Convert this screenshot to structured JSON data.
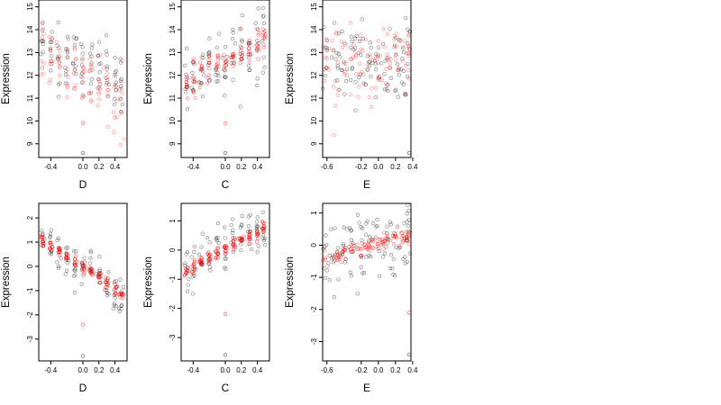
{
  "figure": {
    "background": "#ffffff",
    "black_color": "#000000",
    "red_color": "#ff0000"
  },
  "chart_data": [
    {
      "type": "scatter",
      "row": 1,
      "col": 1,
      "xlabel": "D",
      "ylabel": "Expression",
      "xlim": [
        -0.55,
        0.55
      ],
      "ylim": [
        8.4,
        15.3
      ],
      "xticks": [
        -0.4,
        0.0,
        0.2,
        0.4
      ],
      "xtick_labels": [
        "-0.4",
        "0.0",
        "0.2",
        "0.4"
      ],
      "yticks": [
        9,
        10,
        11,
        12,
        13,
        14,
        15
      ],
      "ytick_labels": [
        "9",
        "10",
        "11",
        "12",
        "13",
        "14",
        "15"
      ],
      "marker": "open circle",
      "series": [
        {
          "color": "#000000",
          "opacity": 0.45,
          "count": 90,
          "groups": [
            [
              -0.5,
              13.3
            ],
            [
              -0.4,
              13.0
            ],
            [
              -0.3,
              12.9
            ],
            [
              -0.2,
              12.6
            ],
            [
              -0.1,
              12.6
            ],
            [
              0.0,
              12.5
            ],
            [
              0.1,
              12.3
            ],
            [
              0.2,
              12.3
            ],
            [
              0.3,
              12.0
            ],
            [
              0.4,
              11.6
            ],
            [
              0.48,
              11.2
            ]
          ],
          "spread_x": 0.012,
          "spread_y": 0.7
        },
        {
          "color": "#ff0000",
          "opacity": 0.4,
          "count": 90,
          "groups": [
            [
              -0.5,
              13.2
            ],
            [
              -0.4,
              12.8
            ],
            [
              -0.3,
              12.6
            ],
            [
              -0.2,
              12.4
            ],
            [
              -0.1,
              12.3
            ],
            [
              0.0,
              12.0
            ],
            [
              0.1,
              11.9
            ],
            [
              0.2,
              11.7
            ],
            [
              0.3,
              11.4
            ],
            [
              0.4,
              11.2
            ],
            [
              0.48,
              10.8
            ]
          ],
          "spread_x": 0.012,
          "spread_y": 0.8
        }
      ],
      "outliers": [
        {
          "x": 0.0,
          "y": 8.6,
          "color": "#000000"
        },
        {
          "x": 0.0,
          "y": 9.9,
          "color": "#ff0000"
        }
      ]
    },
    {
      "type": "scatter",
      "row": 1,
      "col": 2,
      "xlabel": "C",
      "ylabel": "Expression",
      "xlim": [
        -0.55,
        0.55
      ],
      "ylim": [
        8.4,
        15.3
      ],
      "xticks": [
        -0.4,
        0.0,
        0.2,
        0.4
      ],
      "xtick_labels": [
        "-0.4",
        "0.0",
        "0.2",
        "0.4"
      ],
      "yticks": [
        9,
        10,
        11,
        12,
        13,
        14,
        15
      ],
      "ytick_labels": [
        "9",
        "10",
        "11",
        "12",
        "13",
        "14",
        "15"
      ],
      "marker": "open circle",
      "series": [
        {
          "color": "#000000",
          "opacity": 0.45,
          "count": 90,
          "groups": [
            [
              -0.48,
              11.6
            ],
            [
              -0.4,
              12.0
            ],
            [
              -0.3,
              12.2
            ],
            [
              -0.2,
              12.4
            ],
            [
              -0.1,
              12.6
            ],
            [
              0.0,
              12.6
            ],
            [
              0.1,
              12.8
            ],
            [
              0.2,
              13.0
            ],
            [
              0.3,
              13.1
            ],
            [
              0.4,
              13.4
            ],
            [
              0.48,
              13.6
            ]
          ],
          "spread_x": 0.012,
          "spread_y": 0.7
        },
        {
          "color": "#ff0000",
          "opacity": 0.5,
          "count": 90,
          "groups": [
            [
              -0.48,
              11.5
            ],
            [
              -0.4,
              11.9
            ],
            [
              -0.3,
              12.1
            ],
            [
              -0.2,
              12.3
            ],
            [
              -0.1,
              12.5
            ],
            [
              0.0,
              12.6
            ],
            [
              0.1,
              12.8
            ],
            [
              0.2,
              12.9
            ],
            [
              0.3,
              13.1
            ],
            [
              0.4,
              13.3
            ],
            [
              0.48,
              13.5
            ]
          ],
          "spread_x": 0.012,
          "spread_y": 0.35
        }
      ],
      "outliers": [
        {
          "x": 0.0,
          "y": 8.6,
          "color": "#000000"
        },
        {
          "x": 0.0,
          "y": 9.9,
          "color": "#ff0000"
        }
      ]
    },
    {
      "type": "scatter",
      "row": 1,
      "col": 3,
      "xlabel": "E",
      "ylabel": "Expression",
      "xlim": [
        -0.65,
        0.38
      ],
      "ylim": [
        8.4,
        15.3
      ],
      "xticks": [
        -0.6,
        -0.2,
        0.0,
        0.2,
        0.4
      ],
      "xtick_labels": [
        "-0.6",
        "-0.2",
        "0.0",
        "0.2",
        "0.4"
      ],
      "yticks": [
        9,
        10,
        11,
        12,
        13,
        14,
        15
      ],
      "ytick_labels": [
        "9",
        "10",
        "11",
        "12",
        "13",
        "14",
        "15"
      ],
      "marker": "open circle",
      "series": [
        {
          "color": "#000000",
          "opacity": 0.45,
          "count": 100,
          "groups": [
            [
              -0.62,
              12.6
            ],
            [
              -0.5,
              12.6
            ],
            [
              -0.4,
              12.5
            ],
            [
              -0.3,
              12.6
            ],
            [
              -0.2,
              12.5
            ],
            [
              -0.1,
              12.4
            ],
            [
              0.0,
              12.4
            ],
            [
              0.1,
              12.5
            ],
            [
              0.2,
              12.5
            ],
            [
              0.3,
              12.6
            ],
            [
              0.36,
              12.8
            ]
          ],
          "spread_x": 0.03,
          "spread_y": 0.8
        },
        {
          "color": "#ff0000",
          "opacity": 0.4,
          "count": 100,
          "groups": [
            [
              -0.62,
              12.7
            ],
            [
              -0.5,
              12.6
            ],
            [
              -0.4,
              12.5
            ],
            [
              -0.3,
              12.5
            ],
            [
              -0.2,
              12.4
            ],
            [
              -0.1,
              12.4
            ],
            [
              0.0,
              12.4
            ],
            [
              0.1,
              12.5
            ],
            [
              0.2,
              12.5
            ],
            [
              0.3,
              12.6
            ],
            [
              0.36,
              13.0
            ]
          ],
          "spread_x": 0.03,
          "spread_y": 0.8
        }
      ],
      "outliers": [
        {
          "x": 0.36,
          "y": 8.6,
          "color": "#000000"
        }
      ]
    },
    {
      "type": "scatter",
      "row": 2,
      "col": 1,
      "xlabel": "D",
      "ylabel": "Expression",
      "xlim": [
        -0.55,
        0.55
      ],
      "ylim": [
        -3.9,
        2.6
      ],
      "xticks": [
        -0.4,
        0.0,
        0.2,
        0.4
      ],
      "xtick_labels": [
        "-0.4",
        "0.0",
        "0.2",
        "0.4"
      ],
      "yticks": [
        -3,
        -2,
        -1,
        0,
        1,
        2
      ],
      "ytick_labels": [
        "-3",
        "-2",
        "-1",
        "0",
        "1",
        "2"
      ],
      "marker": "open circle",
      "series": [
        {
          "color": "#000000",
          "opacity": 0.45,
          "count": 90,
          "groups": [
            [
              -0.5,
              1.1
            ],
            [
              -0.4,
              0.9
            ],
            [
              -0.3,
              0.6
            ],
            [
              -0.2,
              0.4
            ],
            [
              -0.1,
              0.2
            ],
            [
              0.0,
              0.0
            ],
            [
              0.1,
              -0.2
            ],
            [
              0.2,
              -0.4
            ],
            [
              0.3,
              -0.7
            ],
            [
              0.4,
              -1.0
            ],
            [
              0.48,
              -1.2
            ]
          ],
          "spread_x": 0.012,
          "spread_y": 0.45
        },
        {
          "color": "#ff0000",
          "opacity": 0.6,
          "count": 90,
          "groups": [
            [
              -0.5,
              1.1
            ],
            [
              -0.4,
              0.85
            ],
            [
              -0.3,
              0.6
            ],
            [
              -0.2,
              0.4
            ],
            [
              -0.1,
              0.15
            ],
            [
              0.0,
              -0.05
            ],
            [
              0.1,
              -0.25
            ],
            [
              0.2,
              -0.45
            ],
            [
              0.3,
              -0.7
            ],
            [
              0.4,
              -0.95
            ],
            [
              0.48,
              -1.15
            ]
          ],
          "spread_x": 0.012,
          "spread_y": 0.12
        }
      ],
      "outliers": [
        {
          "x": 0.0,
          "y": -3.7,
          "color": "#000000"
        },
        {
          "x": 0.0,
          "y": -2.4,
          "color": "#ff0000"
        }
      ]
    },
    {
      "type": "scatter",
      "row": 2,
      "col": 2,
      "xlabel": "C",
      "ylabel": "Expression",
      "xlim": [
        -0.55,
        0.55
      ],
      "ylim": [
        -3.8,
        1.6
      ],
      "xticks": [
        -0.4,
        0.0,
        0.2,
        0.4
      ],
      "xtick_labels": [
        "-0.4",
        "0.0",
        "0.2",
        "0.4"
      ],
      "yticks": [
        -3,
        -2,
        -1,
        0,
        1
      ],
      "ytick_labels": [
        "-3",
        "-2",
        "-1",
        "0",
        "1"
      ],
      "marker": "open circle",
      "series": [
        {
          "color": "#000000",
          "opacity": 0.45,
          "count": 90,
          "groups": [
            [
              -0.48,
              -0.7
            ],
            [
              -0.4,
              -0.5
            ],
            [
              -0.3,
              -0.35
            ],
            [
              -0.2,
              -0.2
            ],
            [
              -0.1,
              -0.05
            ],
            [
              0.0,
              0.05
            ],
            [
              0.1,
              0.2
            ],
            [
              0.2,
              0.35
            ],
            [
              0.3,
              0.45
            ],
            [
              0.4,
              0.65
            ],
            [
              0.48,
              0.8
            ]
          ],
          "spread_x": 0.012,
          "spread_y": 0.45
        },
        {
          "color": "#ff0000",
          "opacity": 0.6,
          "count": 90,
          "groups": [
            [
              -0.48,
              -0.75
            ],
            [
              -0.4,
              -0.55
            ],
            [
              -0.3,
              -0.4
            ],
            [
              -0.2,
              -0.25
            ],
            [
              -0.1,
              -0.1
            ],
            [
              0.0,
              0.05
            ],
            [
              0.1,
              0.2
            ],
            [
              0.2,
              0.35
            ],
            [
              0.3,
              0.45
            ],
            [
              0.4,
              0.6
            ],
            [
              0.48,
              0.75
            ]
          ],
          "spread_x": 0.012,
          "spread_y": 0.1
        }
      ],
      "outliers": [
        {
          "x": 0.0,
          "y": -3.6,
          "color": "#000000"
        },
        {
          "x": 0.0,
          "y": -2.2,
          "color": "#ff0000"
        }
      ]
    },
    {
      "type": "scatter",
      "row": 2,
      "col": 3,
      "xlabel": "E",
      "ylabel": "Expression",
      "xlim": [
        -0.65,
        0.38
      ],
      "ylim": [
        -3.6,
        1.3
      ],
      "xticks": [
        -0.6,
        -0.2,
        0.0,
        0.2,
        0.4
      ],
      "xtick_labels": [
        "-0.6",
        "-0.2",
        "0.0",
        "0.2",
        "0.4"
      ],
      "yticks": [
        -3,
        -2,
        -1,
        0,
        1
      ],
      "ytick_labels": [
        "-3",
        "-2",
        "-1",
        "0",
        "1"
      ],
      "marker": "open circle",
      "series": [
        {
          "color": "#000000",
          "opacity": 0.45,
          "count": 100,
          "groups": [
            [
              -0.62,
              -0.5
            ],
            [
              -0.5,
              -0.3
            ],
            [
              -0.4,
              -0.2
            ],
            [
              -0.3,
              -0.15
            ],
            [
              -0.2,
              -0.1
            ],
            [
              -0.1,
              0.0
            ],
            [
              0.0,
              0.05
            ],
            [
              0.1,
              0.1
            ],
            [
              0.2,
              0.15
            ],
            [
              0.3,
              0.2
            ],
            [
              0.36,
              0.3
            ]
          ],
          "spread_x": 0.03,
          "spread_y": 0.5
        },
        {
          "color": "#ff0000",
          "opacity": 0.5,
          "count": 100,
          "groups": [
            [
              -0.62,
              -0.45
            ],
            [
              -0.5,
              -0.35
            ],
            [
              -0.4,
              -0.25
            ],
            [
              -0.3,
              -0.15
            ],
            [
              -0.2,
              -0.05
            ],
            [
              -0.1,
              0.0
            ],
            [
              0.0,
              0.05
            ],
            [
              0.1,
              0.12
            ],
            [
              0.2,
              0.18
            ],
            [
              0.3,
              0.25
            ],
            [
              0.36,
              0.32
            ]
          ],
          "spread_x": 0.03,
          "spread_y": 0.12
        }
      ],
      "outliers": [
        {
          "x": 0.36,
          "y": -3.4,
          "color": "#000000"
        },
        {
          "x": 0.36,
          "y": -2.1,
          "color": "#ff0000"
        }
      ]
    }
  ]
}
